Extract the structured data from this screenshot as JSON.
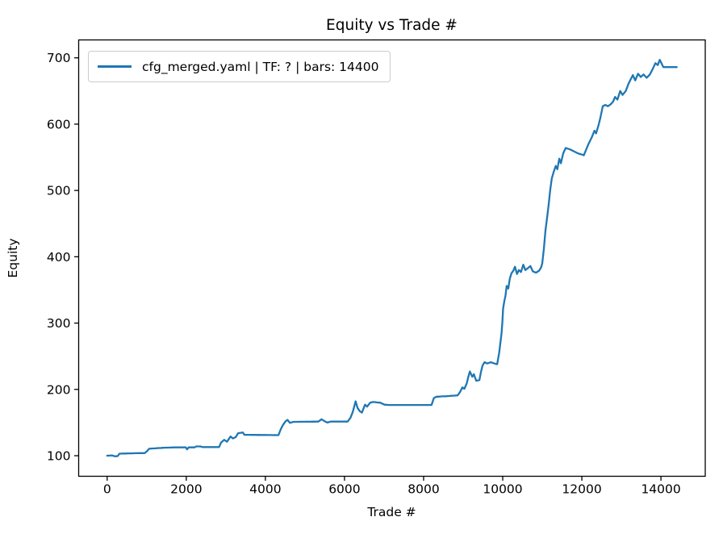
{
  "title": "Equity vs Trade #",
  "legend": {
    "label": "cfg_merged.yaml | TF: ? | bars: 14400",
    "line_color": "#1f77b4"
  },
  "axes": {
    "xlabel": "Trade #",
    "ylabel": "Equity",
    "x_ticks": [
      0,
      2000,
      4000,
      6000,
      8000,
      10000,
      12000,
      14000
    ],
    "y_ticks": [
      100,
      200,
      300,
      400,
      500,
      600,
      700
    ],
    "spine_color": "#000000",
    "tick_color": "#000000"
  },
  "chart_data": {
    "type": "line",
    "title": "Equity vs Trade #",
    "xlabel": "Trade #",
    "ylabel": "Equity",
    "xlim": [
      -720,
      15120
    ],
    "ylim": [
      69,
      727
    ],
    "grid": false,
    "legend_position": "upper left",
    "series": [
      {
        "name": "cfg_merged.yaml | TF: ? | bars: 14400",
        "color": "#1f77b4",
        "points": [
          [
            0,
            100
          ],
          [
            120,
            100.5
          ],
          [
            200,
            99
          ],
          [
            270,
            99.5
          ],
          [
            310,
            103
          ],
          [
            520,
            103.5
          ],
          [
            950,
            104
          ],
          [
            1010,
            107
          ],
          [
            1060,
            110.5
          ],
          [
            1160,
            111
          ],
          [
            1450,
            112
          ],
          [
            1700,
            112.5
          ],
          [
            1990,
            112.5
          ],
          [
            2020,
            109.5
          ],
          [
            2060,
            112.5
          ],
          [
            2210,
            112.5
          ],
          [
            2250,
            114
          ],
          [
            2360,
            114
          ],
          [
            2410,
            113
          ],
          [
            2830,
            113
          ],
          [
            2880,
            120
          ],
          [
            2960,
            124
          ],
          [
            3030,
            121
          ],
          [
            3120,
            129
          ],
          [
            3180,
            126
          ],
          [
            3250,
            128
          ],
          [
            3310,
            134
          ],
          [
            3430,
            135
          ],
          [
            3470,
            131.5
          ],
          [
            3600,
            131.5
          ],
          [
            4330,
            131
          ],
          [
            4390,
            140
          ],
          [
            4440,
            146
          ],
          [
            4510,
            152
          ],
          [
            4560,
            154
          ],
          [
            4620,
            149.5
          ],
          [
            4700,
            151
          ],
          [
            5340,
            151.5
          ],
          [
            5420,
            155
          ],
          [
            5500,
            152
          ],
          [
            5570,
            150
          ],
          [
            5650,
            151.5
          ],
          [
            6080,
            151.5
          ],
          [
            6150,
            157
          ],
          [
            6210,
            166
          ],
          [
            6280,
            182
          ],
          [
            6330,
            172
          ],
          [
            6390,
            167
          ],
          [
            6440,
            165
          ],
          [
            6520,
            177
          ],
          [
            6570,
            174
          ],
          [
            6650,
            180
          ],
          [
            6720,
            181
          ],
          [
            6900,
            180
          ],
          [
            7010,
            177
          ],
          [
            7120,
            176.5
          ],
          [
            8200,
            176.5
          ],
          [
            8260,
            187
          ],
          [
            8330,
            189
          ],
          [
            8650,
            190
          ],
          [
            8860,
            191
          ],
          [
            8920,
            196
          ],
          [
            8980,
            203
          ],
          [
            9030,
            201
          ],
          [
            9090,
            209
          ],
          [
            9130,
            219
          ],
          [
            9170,
            227
          ],
          [
            9230,
            219
          ],
          [
            9270,
            223
          ],
          [
            9330,
            213
          ],
          [
            9410,
            214
          ],
          [
            9450,
            226
          ],
          [
            9490,
            236
          ],
          [
            9540,
            241
          ],
          [
            9610,
            239
          ],
          [
            9700,
            241
          ],
          [
            9790,
            239
          ],
          [
            9860,
            238
          ],
          [
            9910,
            255
          ],
          [
            9940,
            270
          ],
          [
            9970,
            284
          ],
          [
            9990,
            300
          ],
          [
            10010,
            322
          ],
          [
            10040,
            333
          ],
          [
            10070,
            341
          ],
          [
            10100,
            356
          ],
          [
            10140,
            352
          ],
          [
            10180,
            367
          ],
          [
            10220,
            375
          ],
          [
            10270,
            379
          ],
          [
            10310,
            385
          ],
          [
            10360,
            374
          ],
          [
            10410,
            380
          ],
          [
            10460,
            377
          ],
          [
            10520,
            388
          ],
          [
            10570,
            380
          ],
          [
            10640,
            383
          ],
          [
            10700,
            386
          ],
          [
            10760,
            378
          ],
          [
            10840,
            376
          ],
          [
            10920,
            379
          ],
          [
            10970,
            384
          ],
          [
            11000,
            390
          ],
          [
            11040,
            412
          ],
          [
            11080,
            440
          ],
          [
            11120,
            458
          ],
          [
            11160,
            478
          ],
          [
            11200,
            500
          ],
          [
            11240,
            518
          ],
          [
            11290,
            528
          ],
          [
            11340,
            537
          ],
          [
            11380,
            532
          ],
          [
            11430,
            548
          ],
          [
            11470,
            541
          ],
          [
            11530,
            556
          ],
          [
            11590,
            564
          ],
          [
            11700,
            562
          ],
          [
            11800,
            559
          ],
          [
            11900,
            556
          ],
          [
            12050,
            553
          ],
          [
            12160,
            569
          ],
          [
            12250,
            580
          ],
          [
            12320,
            590
          ],
          [
            12360,
            586
          ],
          [
            12430,
            600
          ],
          [
            12470,
            610
          ],
          [
            12530,
            627
          ],
          [
            12590,
            629
          ],
          [
            12660,
            627
          ],
          [
            12730,
            630
          ],
          [
            12790,
            634
          ],
          [
            12840,
            641
          ],
          [
            12900,
            637
          ],
          [
            12970,
            650
          ],
          [
            13030,
            644
          ],
          [
            13110,
            650
          ],
          [
            13180,
            661
          ],
          [
            13240,
            668
          ],
          [
            13290,
            674
          ],
          [
            13350,
            666
          ],
          [
            13420,
            676
          ],
          [
            13490,
            671
          ],
          [
            13560,
            675
          ],
          [
            13640,
            670
          ],
          [
            13720,
            675
          ],
          [
            13790,
            683
          ],
          [
            13860,
            692
          ],
          [
            13920,
            689
          ],
          [
            13970,
            697
          ],
          [
            14020,
            691
          ],
          [
            14060,
            686
          ],
          [
            14400,
            686
          ]
        ]
      }
    ]
  }
}
